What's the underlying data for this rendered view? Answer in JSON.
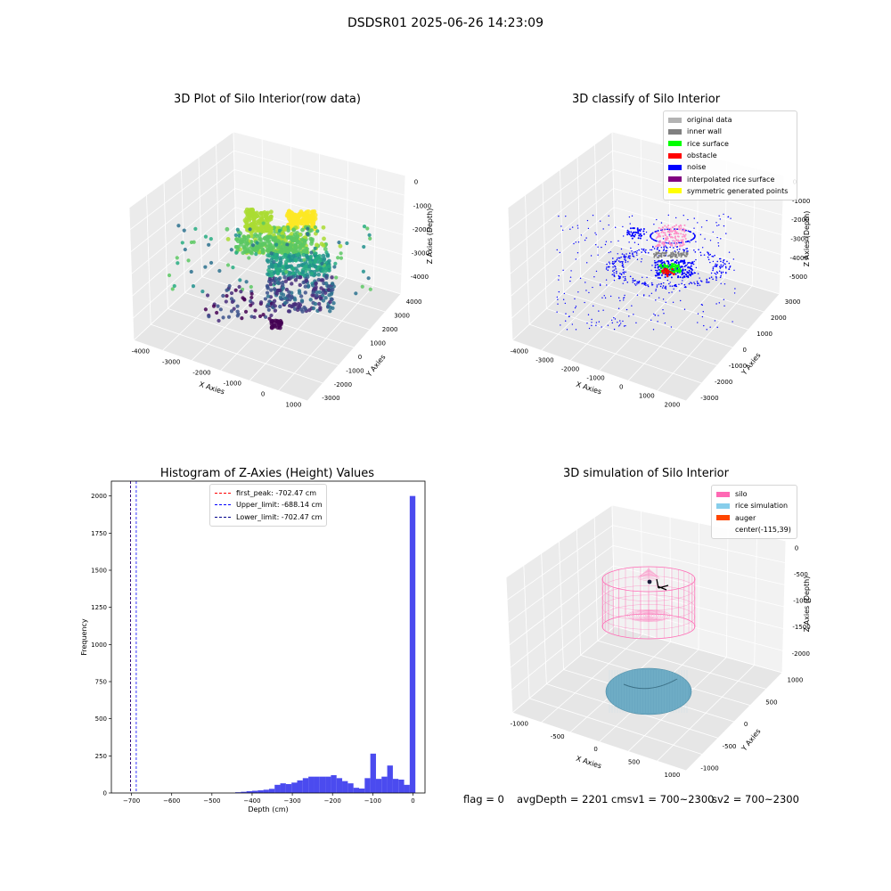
{
  "figure": {
    "suptitle": "DSDSR01 2025-06-26 14:23:09"
  },
  "footer": {
    "flag": "flag = 0",
    "avg_depth": "avgDepth = 2201 cmsv1 = 700~2300",
    "sv2": "sv2 = 700~2300"
  },
  "panels": {
    "raw": {
      "title": "3D Plot of Silo Interior(row data)",
      "xlabel": "X Axies",
      "ylabel": "Y Axies",
      "zlabel": "Z Axies (Depth)",
      "xticks": [
        "-4000",
        "-3000",
        "-2000",
        "-1000",
        "0",
        "1000"
      ],
      "yticks": [
        "-3000",
        "-2000",
        "-1000",
        "0",
        "1000",
        "2000",
        "3000",
        "4000"
      ],
      "zticks": [
        "0",
        "-1000",
        "-2000",
        "-3000",
        "-4000"
      ]
    },
    "classify": {
      "title": "3D classify of Silo Interior",
      "xlabel": "X Axies",
      "ylabel": "Y Axies",
      "zlabel": "Z Axies (Depth)",
      "xticks": [
        "-4000",
        "-3000",
        "-2000",
        "-1000",
        "0",
        "1000",
        "2000"
      ],
      "yticks": [
        "-3000",
        "-2000",
        "-1000",
        "0",
        "1000",
        "2000",
        "3000"
      ],
      "zticks": [
        "0",
        "-1000",
        "-2000",
        "-3000",
        "-4000",
        "-5000"
      ],
      "legend": [
        {
          "label": "original data",
          "color": "#b3b3b3"
        },
        {
          "label": "inner wall",
          "color": "#808080"
        },
        {
          "label": "rice surface",
          "color": "#00ff00"
        },
        {
          "label": "obstacle",
          "color": "#ff0000"
        },
        {
          "label": "noise",
          "color": "#0000ff"
        },
        {
          "label": "interpolated rice surface",
          "color": "#800080"
        },
        {
          "label": "symmetric generated points",
          "color": "#ffff00"
        }
      ]
    },
    "simulation": {
      "title": "3D simulation of Silo Interior",
      "xlabel": "X Axies",
      "ylabel": "Y Axies",
      "zlabel": "Z Axies (Depth)",
      "xticks": [
        "-1000",
        "-500",
        "0",
        "500",
        "1000"
      ],
      "yticks": [
        "-1000",
        "-500",
        "0",
        "500",
        "1000"
      ],
      "zticks": [
        "0",
        "-500",
        "-1000",
        "-1500",
        "-2000"
      ],
      "legend": [
        {
          "label": "silo",
          "color": "#ff69b4"
        },
        {
          "label": "rice simulation",
          "color": "#87ceeb"
        },
        {
          "label": "auger",
          "color": "#ff4500"
        },
        {
          "label": "center(-115,39)",
          "color": ""
        }
      ]
    }
  },
  "chart_data": [
    {
      "type": "histogram",
      "title": "Histogram of Z-Axies (Height) Values",
      "xlabel": "Depth (cm)",
      "ylabel": "Frequency",
      "xlim": [
        -750,
        30
      ],
      "ylim": [
        0,
        2100
      ],
      "xticks": [
        -700,
        -600,
        -500,
        -400,
        -300,
        -200,
        -100,
        0
      ],
      "yticks": [
        0,
        250,
        500,
        750,
        1000,
        1250,
        1500,
        1750,
        2000
      ],
      "bar_color": "#4b4bef",
      "bin_width": 14.05,
      "bin_starts": [
        -442,
        -428,
        -414,
        -400,
        -386,
        -372,
        -358,
        -344,
        -330,
        -316,
        -302,
        -288,
        -274,
        -260,
        -246,
        -232,
        -218,
        -204,
        -190,
        -176,
        -162,
        -148,
        -134,
        -120,
        -106,
        -92,
        -78,
        -64,
        -50,
        -36,
        -22,
        -8
      ],
      "values": [
        5,
        8,
        12,
        15,
        18,
        22,
        28,
        55,
        65,
        60,
        70,
        85,
        100,
        110,
        110,
        110,
        110,
        120,
        100,
        80,
        65,
        35,
        30,
        100,
        265,
        95,
        110,
        185,
        95,
        90,
        55,
        2000
      ],
      "lines": [
        {
          "label": "first_peak: -702.47 cm",
          "x": -702.47,
          "color": "#ff0000"
        },
        {
          "label": "Upper_limit: -688.14 cm",
          "x": -688.14,
          "color": "#0000ff"
        },
        {
          "label": "Lower_limit: -702.47 cm",
          "x": -702.47,
          "color": "#00008b"
        }
      ]
    }
  ]
}
